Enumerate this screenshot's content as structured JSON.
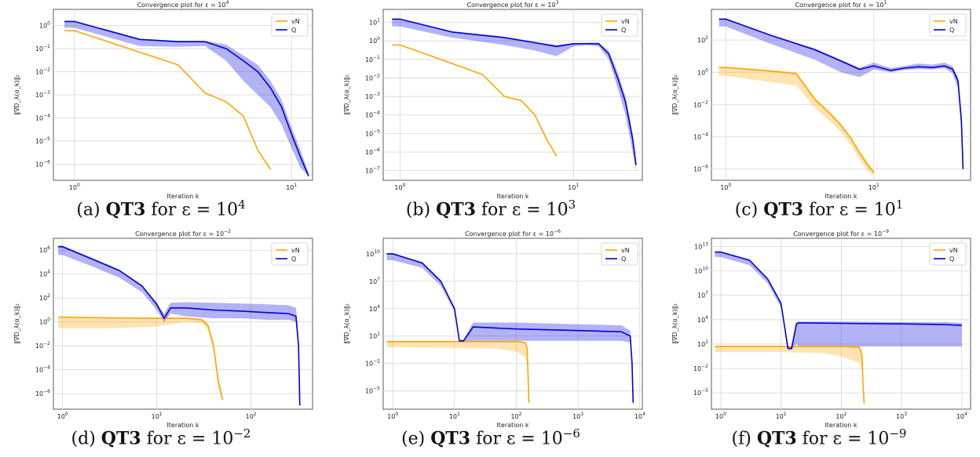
{
  "chart_data": [
    {
      "type": "line",
      "id": "a",
      "title": "Convergence plot for ε = 10^4",
      "xlabel": "Iteration k",
      "ylabel": "‖∇D_λ(α_k)‖₂",
      "xscale": "log",
      "yscale": "log",
      "xlim": [
        0.8,
        12.5
      ],
      "ylim": [
        2e-07,
        5
      ],
      "xticks": [
        {
          "v": 1,
          "label": "10^0"
        },
        {
          "v": 10,
          "label": "10^1"
        }
      ],
      "yticks": [
        {
          "v": 1e-06,
          "label": "10^-6"
        },
        {
          "v": 1e-05,
          "label": "10^-5"
        },
        {
          "v": 0.0001,
          "label": "10^-4"
        },
        {
          "v": 0.001,
          "label": "10^-3"
        },
        {
          "v": 0.01,
          "label": "10^-2"
        },
        {
          "v": 0.1,
          "label": "10^-1"
        },
        {
          "v": 1,
          "label": "10^0"
        }
      ],
      "grid": true,
      "legend_position": "top-right",
      "caption": {
        "prefix": "(a) ",
        "bold": "QT3",
        "mid": " for ε = 10",
        "exp": "4"
      },
      "series": [
        {
          "name": "vN",
          "color": "#FFA500",
          "x": [
            0.9,
            1,
            2,
            3,
            4,
            5,
            6,
            7,
            8
          ],
          "y": [
            0.6,
            0.6,
            0.07,
            0.02,
            0.0012,
            0.0005,
            0.00012,
            4e-06,
            6e-07
          ]
        },
        {
          "name": "Q",
          "color": "#0000DD",
          "x": [
            0.9,
            1,
            2,
            3,
            4,
            5,
            6,
            7,
            8,
            9,
            10,
            11,
            12
          ],
          "y": [
            1.5,
            1.5,
            0.25,
            0.2,
            0.2,
            0.1,
            0.03,
            0.01,
            0.002,
            0.0003,
            2e-05,
            2e-06,
            3e-07
          ],
          "band_low": [
            0.8,
            0.8,
            0.13,
            0.12,
            0.13,
            0.03,
            0.004,
            0.001,
            0.0003,
            5e-05,
            5e-06,
            7e-07,
            3e-07
          ],
          "band_high": [
            1.6,
            1.6,
            0.27,
            0.22,
            0.22,
            0.15,
            0.05,
            0.02,
            0.004,
            0.0006,
            4e-05,
            4e-06,
            4e-07
          ]
        }
      ]
    },
    {
      "type": "line",
      "id": "b",
      "title": "Convergence plot for ε = 10^3",
      "xlabel": "Iteration k",
      "ylabel": "‖∇D_λ(α_k)‖₂",
      "xscale": "log",
      "yscale": "log",
      "xlim": [
        0.8,
        25
      ],
      "ylim": [
        3e-08,
        50
      ],
      "xticks": [
        {
          "v": 1,
          "label": "10^0"
        },
        {
          "v": 10,
          "label": "10^1"
        }
      ],
      "yticks": [
        {
          "v": 1e-07,
          "label": "10^-7"
        },
        {
          "v": 1e-06,
          "label": "10^-6"
        },
        {
          "v": 1e-05,
          "label": "10^-5"
        },
        {
          "v": 0.0001,
          "label": "10^-4"
        },
        {
          "v": 0.001,
          "label": "10^-3"
        },
        {
          "v": 0.01,
          "label": "10^-2"
        },
        {
          "v": 0.1,
          "label": "10^-1"
        },
        {
          "v": 1,
          "label": "10^0"
        },
        {
          "v": 10,
          "label": "10^1"
        }
      ],
      "grid": true,
      "legend_position": "top-right",
      "caption": {
        "prefix": "(b) ",
        "bold": "QT3",
        "mid": " for ε = 10",
        "exp": "3"
      },
      "series": [
        {
          "name": "vN",
          "color": "#FFA500",
          "x": [
            0.9,
            1,
            2,
            3,
            4,
            5,
            6,
            7,
            8
          ],
          "y": [
            0.6,
            0.6,
            0.06,
            0.015,
            0.001,
            0.0006,
            0.0001,
            5e-06,
            6e-07
          ]
        },
        {
          "name": "Q",
          "color": "#0000DD",
          "x": [
            0.9,
            1,
            2,
            4,
            6,
            8,
            10,
            12,
            14,
            16,
            18,
            20,
            22,
            23
          ],
          "y": [
            15,
            15,
            3,
            1.5,
            0.8,
            0.5,
            0.7,
            0.7,
            0.7,
            0.2,
            0.01,
            0.0005,
            5e-06,
            2e-07
          ],
          "band_low": [
            6,
            6,
            1.5,
            0.6,
            0.3,
            0.15,
            0.5,
            0.6,
            0.5,
            0.1,
            0.003,
            0.0001,
            1e-06,
            1e-07
          ],
          "band_high": [
            16,
            16,
            3.3,
            1.7,
            0.9,
            0.6,
            0.75,
            0.8,
            0.8,
            0.3,
            0.02,
            0.001,
            1e-05,
            3e-07
          ]
        }
      ]
    },
    {
      "type": "line",
      "id": "c",
      "title": "Convergence plot for ε = 10^1",
      "xlabel": "Iteration k",
      "ylabel": "‖∇D_λ(α_k)‖₂",
      "xscale": "log",
      "yscale": "log",
      "xlim": [
        0.8,
        45
      ],
      "ylim": [
        2e-07,
        8000
      ],
      "xticks": [
        {
          "v": 1,
          "label": "10^0"
        },
        {
          "v": 10,
          "label": "10^1"
        }
      ],
      "yticks": [
        {
          "v": 1e-06,
          "label": "10^-6"
        },
        {
          "v": 0.0001,
          "label": "10^-4"
        },
        {
          "v": 0.01,
          "label": "10^-2"
        },
        {
          "v": 1,
          "label": "10^0"
        },
        {
          "v": 100,
          "label": "10^2"
        }
      ],
      "grid": true,
      "legend_position": "top-right",
      "caption": {
        "prefix": "(c) ",
        "bold": "QT3",
        "mid": " for ε = 10",
        "exp": "1"
      },
      "series": [
        {
          "name": "vN",
          "color": "#FFA500",
          "x": [
            0.9,
            1,
            2,
            3,
            4,
            5,
            6,
            7,
            8,
            9,
            10
          ],
          "y": [
            2,
            2,
            1.2,
            0.8,
            0.02,
            0.003,
            0.0005,
            8e-05,
            1e-05,
            2e-06,
            6e-07
          ],
          "band_low": [
            0.6,
            0.6,
            0.25,
            0.15,
            0.006,
            0.001,
            0.0002,
            3e-05,
            4e-06,
            8e-07,
            4e-07
          ],
          "band_high": [
            2.2,
            2.2,
            1.4,
            1,
            0.03,
            0.004,
            0.0007,
            0.0001,
            1.5e-05,
            3e-06,
            8e-07
          ]
        },
        {
          "name": "Q",
          "color": "#0000DD",
          "x": [
            0.9,
            1,
            2,
            4,
            6,
            8,
            10,
            13,
            16,
            20,
            25,
            30,
            34,
            37,
            39,
            40
          ],
          "y": [
            2000,
            2000,
            200,
            25,
            5,
            1.5,
            2.5,
            1.3,
            1.8,
            2.2,
            2,
            2.5,
            1.6,
            0.3,
            0.001,
            1e-06
          ],
          "band_low": [
            700,
            700,
            60,
            6,
            1,
            0.5,
            1.5,
            1,
            1.4,
            1.6,
            1.5,
            1.8,
            0.9,
            0.1,
            0.0002,
            2e-07
          ],
          "band_high": [
            2200,
            2200,
            220,
            30,
            6,
            2,
            4,
            1.8,
            2.5,
            3.5,
            3,
            4,
            2.4,
            0.5,
            0.003,
            1.5e-06
          ]
        }
      ]
    },
    {
      "type": "line",
      "id": "d",
      "title": "Convergence plot for ε = 10^-2",
      "xlabel": "Iteration k",
      "ylabel": "‖∇D_λ(α_k)‖₂",
      "xscale": "log",
      "yscale": "log",
      "xlim": [
        0.8,
        450
      ],
      "ylim": [
        5e-08,
        10000000.0
      ],
      "xticks": [
        {
          "v": 1,
          "label": "10^0"
        },
        {
          "v": 10,
          "label": "10^1"
        },
        {
          "v": 100,
          "label": "10^2"
        }
      ],
      "yticks": [
        {
          "v": 1e-06,
          "label": "10^-6"
        },
        {
          "v": 0.0001,
          "label": "10^-4"
        },
        {
          "v": 0.01,
          "label": "10^-2"
        },
        {
          "v": 1,
          "label": "10^0"
        },
        {
          "v": 100,
          "label": "10^2"
        },
        {
          "v": 10000.0,
          "label": "10^4"
        },
        {
          "v": 1000000.0,
          "label": "10^6"
        }
      ],
      "grid": true,
      "legend_position": "top-right",
      "caption": {
        "prefix": "(d) ",
        "bold": "QT3",
        "mid": " for ε = 10",
        "exp": "−2"
      },
      "series": [
        {
          "name": "vN",
          "color": "#FFA500",
          "x": [
            0.9,
            1,
            3,
            10,
            20,
            30,
            35,
            40,
            45,
            50
          ],
          "y": [
            2.5,
            2.5,
            2.2,
            2,
            2,
            1.5,
            0.5,
            0.01,
            1e-05,
            3e-07
          ],
          "band_low": [
            0.3,
            0.3,
            0.3,
            0.4,
            1,
            0.8,
            0.2,
            0.004,
            3e-06,
            2e-07
          ],
          "band_high": [
            2.8,
            2.8,
            2.5,
            2.3,
            2.5,
            2,
            0.8,
            0.02,
            3e-05,
            5e-07
          ]
        },
        {
          "name": "Q",
          "color": "#0000DD",
          "x": [
            0.9,
            1,
            2,
            4,
            7,
            10,
            12,
            14,
            20,
            40,
            80,
            150,
            250,
            300,
            320,
            330
          ],
          "y": [
            2000000,
            2000000,
            200000,
            20000,
            1000,
            30,
            2,
            15,
            15,
            10,
            8,
            6,
            5,
            3,
            0.01,
            1e-07
          ],
          "band_low": [
            400000,
            400000,
            50000,
            5000,
            300,
            10,
            1,
            5,
            3,
            2,
            2,
            1.5,
            1.5,
            1,
            0.003,
            8e-08
          ],
          "band_high": [
            2500000,
            2500000,
            250000,
            25000,
            1200,
            40,
            5,
            40,
            45,
            40,
            35,
            30,
            25,
            15,
            0.05,
            3e-07
          ]
        }
      ]
    },
    {
      "type": "line",
      "id": "e",
      "title": "Convergence plot for ε = 10^-6",
      "xlabel": "Iteration k",
      "ylabel": "‖∇D_λ(α_k)‖₂",
      "xscale": "log",
      "yscale": "log",
      "xlim": [
        0.7,
        11000
      ],
      "ylim": [
        1e-07,
        500000000000.0
      ],
      "xticks": [
        {
          "v": 1,
          "label": "10^0"
        },
        {
          "v": 10,
          "label": "10^1"
        },
        {
          "v": 100,
          "label": "10^2"
        },
        {
          "v": 1000,
          "label": "10^3"
        },
        {
          "v": 10000,
          "label": "10^4"
        }
      ],
      "yticks": [
        {
          "v": 1e-05,
          "label": "10^-5"
        },
        {
          "v": 0.01,
          "label": "10^-2"
        },
        {
          "v": 10,
          "label": "10^1"
        },
        {
          "v": 10000.0,
          "label": "10^4"
        },
        {
          "v": 10000000.0,
          "label": "10^7"
        },
        {
          "v": 10000000000.0,
          "label": "10^10"
        }
      ],
      "grid": true,
      "legend_position": "top-right",
      "caption": {
        "prefix": "(e) ",
        "bold": "QT3",
        "mid": " for ε = 10",
        "exp": "−6"
      },
      "series": [
        {
          "name": "vN",
          "color": "#FFA500",
          "x": [
            0.8,
            1,
            10,
            50,
            100,
            140,
            150,
            155,
            160
          ],
          "y": [
            2.5,
            2.5,
            2.5,
            2.5,
            2.5,
            2,
            0.5,
            0.001,
            5e-07
          ],
          "band_low": [
            0.6,
            0.6,
            0.5,
            0.4,
            0.2,
            0.05,
            0.005,
            1e-05,
            3e-07
          ],
          "band_high": [
            3,
            3,
            3,
            3,
            3,
            2.5,
            1,
            0.005,
            1e-06
          ]
        },
        {
          "name": "Q",
          "color": "#0000DD",
          "x": [
            0.8,
            1,
            3,
            6,
            10,
            12,
            14,
            20,
            100,
            1000,
            5000,
            7000,
            7500,
            7800
          ],
          "y": [
            10000000000,
            10000000000,
            1000000000,
            10000000,
            10000,
            3,
            3,
            100,
            60,
            40,
            30,
            10,
            0.01,
            5e-07
          ],
          "band_low": [
            2000000000,
            2000000000,
            300000000,
            3000000,
            5000,
            2,
            2,
            3,
            3,
            3,
            3,
            2,
            0.002,
            3e-07
          ],
          "band_high": [
            12000000000,
            12000000000,
            1200000000,
            12000000,
            15000,
            4,
            4,
            300,
            300,
            200,
            150,
            40,
            0.03,
            1e-06
          ]
        }
      ]
    },
    {
      "type": "line",
      "id": "f",
      "title": "Convergence plot for ε = 10^-9",
      "xlabel": "Iteration k",
      "ylabel": "‖∇D_λ(α_k)‖₂",
      "xscale": "log",
      "yscale": "log",
      "xlim": [
        0.7,
        14000
      ],
      "ylim": [
        1e-07,
        100000000000000.0
      ],
      "xticks": [
        {
          "v": 1,
          "label": "10^0"
        },
        {
          "v": 10,
          "label": "10^1"
        },
        {
          "v": 100,
          "label": "10^2"
        },
        {
          "v": 1000,
          "label": "10^3"
        },
        {
          "v": 10000,
          "label": "10^4"
        }
      ],
      "yticks": [
        {
          "v": 1e-05,
          "label": "10^-5"
        },
        {
          "v": 0.01,
          "label": "10^-2"
        },
        {
          "v": 10,
          "label": "10^1"
        },
        {
          "v": 10000.0,
          "label": "10^4"
        },
        {
          "v": 10000000.0,
          "label": "10^7"
        },
        {
          "v": 10000000000.0,
          "label": "10^10"
        },
        {
          "v": 10000000000000.0,
          "label": "10^13"
        }
      ],
      "grid": true,
      "legend_position": "top-right",
      "caption": {
        "prefix": "(f) ",
        "bold": "QT3",
        "mid": " for ε = 10",
        "exp": "−9"
      },
      "series": [
        {
          "name": "vN",
          "color": "#FFA500",
          "x": [
            0.8,
            1,
            10,
            50,
            100,
            200,
            220,
            230,
            240
          ],
          "y": [
            5,
            5,
            5,
            5,
            5,
            4,
            0.5,
            0.0001,
            5e-07
          ],
          "band_low": [
            1,
            1,
            1,
            0.8,
            0.3,
            0.05,
            0.01,
            1e-05,
            3e-07
          ],
          "band_high": [
            6,
            6,
            6,
            6,
            6,
            5,
            2,
            0.001,
            1e-06
          ]
        },
        {
          "name": "Q",
          "color": "#0000DD",
          "x": [
            0.8,
            1,
            3,
            6,
            10,
            13,
            15,
            18,
            20,
            100,
            1000,
            5000,
            10000
          ],
          "y": [
            2000000000000,
            2000000000000,
            200000000000,
            1000000000,
            1000000,
            3,
            3,
            3000,
            4000,
            3500,
            3000,
            2500,
            2000
          ],
          "band_low": [
            500000000000,
            500000000000,
            50000000000,
            300000000,
            300000,
            2,
            2,
            10,
            5,
            5,
            5,
            5,
            5
          ],
          "band_high": [
            2500000000000,
            2500000000000,
            250000000000,
            1200000000,
            1200000,
            4,
            4,
            5000,
            6000,
            6000,
            5000,
            5000,
            4000
          ]
        }
      ]
    }
  ]
}
